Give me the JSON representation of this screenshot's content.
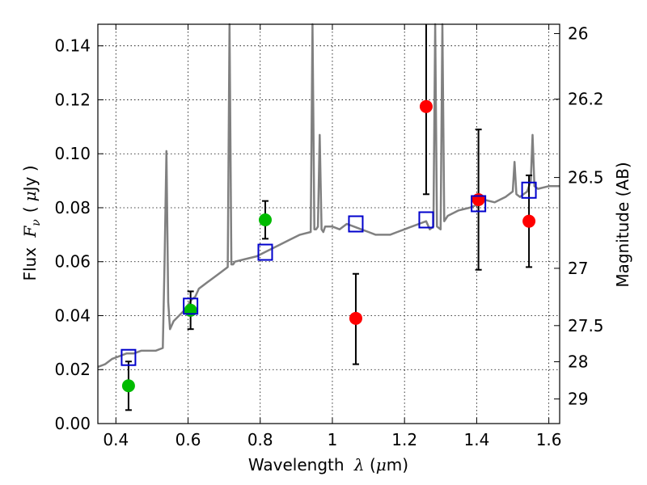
{
  "chart_data": {
    "type": "scatter",
    "xlabel": "Wavelength",
    "xlabel_symbol": "λ",
    "xlabel_unit_open": "(",
    "xlabel_unit_mu": "μ",
    "xlabel_unit_rest": "m)",
    "ylabel": "Flux",
    "ylabel_symbol": "F",
    "ylabel_symbol_sub": "ν",
    "ylabel_unit_open": "(",
    "ylabel_unit_mu": "μ",
    "ylabel_unit_rest": "Jy )",
    "y2label": "Magnitude (AB)",
    "xlim": [
      0.35,
      1.63
    ],
    "ylim": [
      0.0,
      0.148
    ],
    "grid": true,
    "x_ticks": [
      0.4,
      0.6,
      0.8,
      1.0,
      1.2,
      1.4,
      1.6
    ],
    "x_tick_labels": [
      "0.4",
      "0.6",
      "0.8",
      "1",
      "1.2",
      "1.4",
      "1.6"
    ],
    "y_ticks": [
      0.0,
      0.02,
      0.04,
      0.06,
      0.08,
      0.1,
      0.12,
      0.14
    ],
    "y_tick_labels": [
      "0.00",
      "0.02",
      "0.04",
      "0.06",
      "0.08",
      "0.10",
      "0.12",
      "0.14"
    ],
    "mag_ticks": [
      26,
      26.2,
      26.5,
      27,
      27.5,
      28,
      29
    ],
    "mag_tick_labels": [
      "26",
      "26.2",
      "26.5",
      "27",
      "27.5",
      "28",
      "29"
    ],
    "colors": {
      "spectrum": "#808080",
      "model": "#0000cc",
      "green": "#00bb00",
      "red": "#ff0000",
      "errorbar": "#000000"
    },
    "series": [
      {
        "kind": "line",
        "x": [
          0.35,
          0.37,
          0.39,
          0.41,
          0.43,
          0.45,
          0.47,
          0.49,
          0.51,
          0.53,
          0.535,
          0.54,
          0.545,
          0.55,
          0.56,
          0.575,
          0.59,
          0.6,
          0.61,
          0.62,
          0.63,
          0.65,
          0.67,
          0.69,
          0.71,
          0.715,
          0.72,
          0.725,
          0.73,
          0.76,
          0.79,
          0.82,
          0.85,
          0.88,
          0.91,
          0.94,
          0.945,
          0.95,
          0.955,
          0.96,
          0.965,
          0.97,
          0.975,
          0.98,
          1.0,
          1.02,
          1.04,
          1.06,
          1.08,
          1.1,
          1.12,
          1.14,
          1.16,
          1.18,
          1.2,
          1.22,
          1.24,
          1.26,
          1.27,
          1.28,
          1.285,
          1.29,
          1.3,
          1.305,
          1.31,
          1.315,
          1.32,
          1.35,
          1.38,
          1.4,
          1.42,
          1.45,
          1.48,
          1.5,
          1.505,
          1.51,
          1.52,
          1.54,
          1.55,
          1.555,
          1.56,
          1.57,
          1.6,
          1.63
        ],
        "y": [
          0.021,
          0.022,
          0.024,
          0.025,
          0.026,
          0.026,
          0.027,
          0.027,
          0.027,
          0.028,
          0.06,
          0.101,
          0.045,
          0.035,
          0.038,
          0.04,
          0.042,
          0.044,
          0.046,
          0.047,
          0.05,
          0.052,
          0.054,
          0.056,
          0.058,
          0.15,
          0.059,
          0.059,
          0.06,
          0.061,
          0.062,
          0.064,
          0.066,
          0.068,
          0.07,
          0.071,
          0.15,
          0.072,
          0.072,
          0.073,
          0.107,
          0.072,
          0.071,
          0.073,
          0.073,
          0.072,
          0.074,
          0.073,
          0.072,
          0.071,
          0.07,
          0.07,
          0.07,
          0.071,
          0.072,
          0.073,
          0.074,
          0.075,
          0.072,
          0.073,
          0.15,
          0.073,
          0.072,
          0.15,
          0.075,
          0.076,
          0.077,
          0.079,
          0.08,
          0.081,
          0.083,
          0.082,
          0.084,
          0.086,
          0.097,
          0.085,
          0.084,
          0.086,
          0.09,
          0.107,
          0.088,
          0.087,
          0.088,
          0.088
        ]
      },
      {
        "kind": "model_squares",
        "x": [
          0.435,
          0.607,
          0.814,
          1.065,
          1.26,
          1.405,
          1.545
        ],
        "y": [
          0.0245,
          0.0435,
          0.0635,
          0.074,
          0.0755,
          0.0815,
          0.0865
        ]
      },
      {
        "kind": "points",
        "group": "green",
        "x": [
          0.435,
          0.607,
          0.814
        ],
        "y": [
          0.014,
          0.042,
          0.0755
        ],
        "yerr": [
          0.009,
          0.007,
          0.007
        ]
      },
      {
        "kind": "points",
        "group": "red",
        "x": [
          1.065,
          1.26,
          1.405,
          1.545
        ],
        "y": [
          0.039,
          0.1175,
          0.083,
          0.075
        ],
        "yerr_low": [
          0.017,
          0.0325,
          0.026,
          0.017
        ],
        "yerr_high": [
          0.0165,
          0.035,
          0.026,
          0.017
        ]
      }
    ]
  }
}
